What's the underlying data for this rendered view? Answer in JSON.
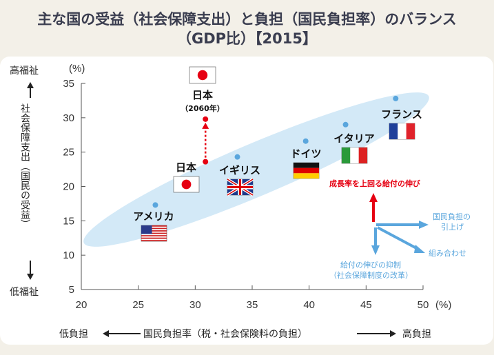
{
  "title_line1": "主な国の受益（社会保障支出）と負担（国民負担率）のバランス",
  "title_line2": "（GDP比）【2015】",
  "chart_data": {
    "type": "scatter",
    "xlabel": "国民負担率（税・社会保険料の負担）",
    "xlabel_left": "低負担",
    "xlabel_right": "高負担",
    "x_unit": "(%)",
    "ylabel": "社会保障支出（国民の受益）",
    "ylabel_top": "高福祉",
    "ylabel_bottom": "低福祉",
    "y_unit": "(%)",
    "xlim": [
      20,
      50
    ],
    "ylim": [
      5,
      35
    ],
    "xticks": [
      "20",
      "25",
      "30",
      "35",
      "40",
      "45",
      "50"
    ],
    "yticks": [
      "5",
      "10",
      "15",
      "20",
      "25",
      "30",
      "35"
    ],
    "grid": false,
    "points": [
      {
        "name": "アメリカ",
        "x": 26.5,
        "y": 17.3,
        "flag": "us"
      },
      {
        "name": "日本",
        "x": 30.9,
        "y": 23.6,
        "flag": "jp"
      },
      {
        "name": "イギリス",
        "x": 33.7,
        "y": 24.3,
        "flag": "uk"
      },
      {
        "name": "ドイツ",
        "x": 39.7,
        "y": 26.6,
        "flag": "de"
      },
      {
        "name": "イタリア",
        "x": 43.2,
        "y": 29.0,
        "flag": "it"
      },
      {
        "name": "フランス",
        "x": 47.6,
        "y": 32.8,
        "flag": "fr"
      }
    ],
    "projection": {
      "name": "日本",
      "sub": "（2060年）",
      "x": 30.9,
      "y": 29.8,
      "flag": "jp"
    },
    "colors": {
      "point": "#5aa6dd",
      "japan": "#e60012",
      "band": "#d3e9f7",
      "arrow_blue": "#5aa6dd",
      "arrow_red": "#e60012"
    },
    "legend": {
      "up": "成長率を上回る給付の伸び",
      "right_1": "国民負担の",
      "right_2": "引上げ",
      "diag": "組み合わせ",
      "down_1": "給付の伸びの抑制",
      "down_2": "（社会保障制度の改革）"
    }
  }
}
